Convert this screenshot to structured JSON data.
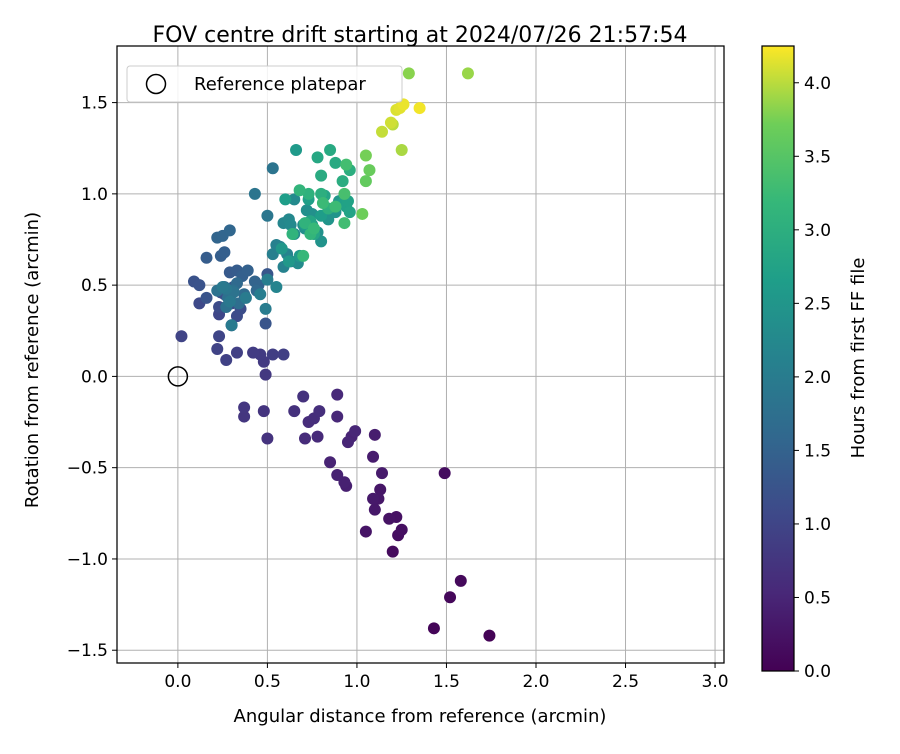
{
  "chart_data": {
    "type": "scatter",
    "title": "FOV centre drift starting at 2024/07/26 21:57:54",
    "xlabel": "Angular distance from reference (arcmin)",
    "ylabel": "Rotation from reference (arcmin)",
    "xlim": [
      -0.34,
      3.05
    ],
    "ylim": [
      -1.57,
      1.81
    ],
    "xticks": [
      0.0,
      0.5,
      1.0,
      1.5,
      2.0,
      2.5,
      3.0
    ],
    "xtick_labels": [
      "0.0",
      "0.5",
      "1.0",
      "1.5",
      "2.0",
      "2.5",
      "3.0"
    ],
    "yticks": [
      -1.5,
      -1.0,
      -0.5,
      0.0,
      0.5,
      1.0,
      1.5
    ],
    "ytick_labels": [
      "−1.5",
      "−1.0",
      "−0.5",
      "0.0",
      "0.5",
      "1.0",
      "1.5"
    ],
    "grid": true,
    "legend": {
      "position": "top-left",
      "entries": [
        "Reference platepar"
      ]
    },
    "reference": {
      "x": 0.0,
      "y": 0.0
    },
    "colorbar": {
      "label": "Hours from first FF file",
      "colormap": "viridis",
      "range": [
        0.0,
        4.25
      ],
      "ticks": [
        0.0,
        0.5,
        1.0,
        1.5,
        2.0,
        2.5,
        3.0,
        3.5,
        4.0
      ],
      "tick_labels": [
        "0.0",
        "0.5",
        "1.0",
        "1.5",
        "2.0",
        "2.5",
        "3.0",
        "3.5",
        "4.0"
      ]
    },
    "points": [
      [
        1.74,
        -1.42,
        0.03
      ],
      [
        1.43,
        -1.38,
        0.06
      ],
      [
        1.52,
        -1.21,
        0.09
      ],
      [
        1.58,
        -1.12,
        0.11
      ],
      [
        1.2,
        -0.96,
        0.14
      ],
      [
        1.23,
        -0.87,
        0.17
      ],
      [
        1.25,
        -0.84,
        0.19
      ],
      [
        1.22,
        -0.77,
        0.22
      ],
      [
        1.18,
        -0.78,
        0.24
      ],
      [
        1.05,
        -0.85,
        0.26
      ],
      [
        1.13,
        -0.62,
        0.28
      ],
      [
        1.12,
        -0.67,
        0.3
      ],
      [
        1.1,
        -0.73,
        0.31
      ],
      [
        1.09,
        -0.67,
        0.33
      ],
      [
        1.49,
        -0.53,
        0.16
      ],
      [
        1.14,
        -0.53,
        0.35
      ],
      [
        1.09,
        -0.44,
        0.37
      ],
      [
        1.1,
        -0.32,
        0.39
      ],
      [
        0.94,
        -0.6,
        0.41
      ],
      [
        0.93,
        -0.58,
        0.43
      ],
      [
        0.89,
        -0.54,
        0.45
      ],
      [
        0.85,
        -0.47,
        0.47
      ],
      [
        0.97,
        -0.33,
        0.48
      ],
      [
        0.95,
        -0.36,
        0.5
      ],
      [
        0.99,
        -0.3,
        0.52
      ],
      [
        0.89,
        -0.22,
        0.53
      ],
      [
        0.89,
        -0.1,
        0.55
      ],
      [
        0.78,
        -0.33,
        0.57
      ],
      [
        0.71,
        -0.34,
        0.59
      ],
      [
        0.73,
        -0.25,
        0.61
      ],
      [
        0.76,
        -0.23,
        0.63
      ],
      [
        0.79,
        -0.19,
        0.65
      ],
      [
        0.65,
        -0.19,
        0.67
      ],
      [
        0.7,
        -0.11,
        0.69
      ],
      [
        0.5,
        -0.34,
        0.71
      ],
      [
        0.48,
        -0.19,
        0.73
      ],
      [
        0.37,
        -0.22,
        0.75
      ],
      [
        0.37,
        -0.17,
        0.77
      ],
      [
        0.49,
        0.01,
        0.79
      ],
      [
        0.48,
        0.08,
        0.82
      ],
      [
        0.46,
        0.12,
        0.84
      ],
      [
        0.42,
        0.13,
        0.86
      ],
      [
        0.53,
        0.12,
        0.88
      ],
      [
        0.59,
        0.12,
        0.9
      ],
      [
        0.33,
        0.13,
        0.92
      ],
      [
        0.27,
        0.09,
        0.94
      ],
      [
        0.22,
        0.15,
        0.96
      ],
      [
        0.02,
        0.22,
        0.98
      ],
      [
        0.23,
        0.22,
        1.0
      ],
      [
        0.23,
        0.34,
        1.02
      ],
      [
        0.3,
        0.28,
        1.04
      ],
      [
        0.12,
        0.4,
        1.06
      ],
      [
        0.23,
        0.38,
        1.09
      ],
      [
        0.33,
        0.33,
        1.11
      ],
      [
        0.35,
        0.37,
        1.13
      ],
      [
        0.3,
        0.4,
        1.15
      ],
      [
        0.24,
        0.46,
        1.17
      ],
      [
        0.26,
        0.45,
        1.19
      ],
      [
        0.09,
        0.52,
        1.21
      ],
      [
        0.12,
        0.5,
        1.23
      ],
      [
        0.16,
        0.43,
        1.25
      ],
      [
        0.49,
        0.29,
        1.27
      ],
      [
        0.5,
        0.56,
        1.29
      ],
      [
        0.31,
        0.49,
        1.31
      ],
      [
        0.27,
        0.47,
        1.34
      ],
      [
        0.29,
        0.57,
        1.36
      ],
      [
        0.33,
        0.58,
        1.38
      ],
      [
        0.16,
        0.65,
        1.4
      ],
      [
        0.24,
        0.66,
        1.42
      ],
      [
        0.26,
        0.68,
        1.44
      ],
      [
        0.36,
        0.55,
        1.46
      ],
      [
        0.39,
        0.58,
        1.48
      ],
      [
        0.45,
        0.5,
        1.5
      ],
      [
        0.43,
        0.52,
        1.52
      ],
      [
        0.22,
        0.76,
        1.54
      ],
      [
        0.25,
        0.77,
        1.56
      ],
      [
        0.29,
        0.8,
        1.58
      ],
      [
        0.44,
        0.47,
        1.6
      ],
      [
        0.33,
        0.51,
        1.63
      ],
      [
        0.37,
        0.45,
        1.65
      ],
      [
        0.26,
        0.49,
        1.67
      ],
      [
        0.29,
        0.43,
        1.69
      ],
      [
        0.34,
        0.4,
        1.71
      ],
      [
        0.31,
        0.47,
        1.73
      ],
      [
        0.28,
        0.43,
        1.75
      ],
      [
        0.27,
        0.38,
        1.77
      ],
      [
        0.22,
        0.47,
        1.79
      ],
      [
        0.31,
        0.46,
        1.81
      ],
      [
        0.53,
        1.14,
        1.83
      ],
      [
        0.43,
        1.0,
        1.85
      ],
      [
        0.5,
        0.88,
        1.88
      ],
      [
        0.27,
        0.48,
        1.9
      ],
      [
        0.29,
        0.41,
        1.92
      ],
      [
        0.25,
        0.49,
        1.94
      ],
      [
        0.3,
        0.28,
        1.96
      ],
      [
        0.38,
        0.43,
        1.98
      ],
      [
        0.49,
        0.37,
        2.0
      ],
      [
        0.46,
        0.45,
        2.02
      ],
      [
        0.5,
        0.53,
        2.04
      ],
      [
        0.53,
        0.67,
        2.06
      ],
      [
        0.55,
        0.72,
        2.08
      ],
      [
        0.57,
        0.71,
        2.1
      ],
      [
        0.59,
        0.6,
        2.12
      ],
      [
        0.61,
        0.67,
        2.14
      ],
      [
        0.55,
        0.49,
        2.17
      ],
      [
        0.63,
        0.63,
        2.19
      ],
      [
        0.59,
        0.84,
        2.21
      ],
      [
        0.62,
        0.86,
        2.23
      ],
      [
        0.63,
        0.83,
        2.25
      ],
      [
        0.65,
        0.97,
        2.27
      ],
      [
        0.67,
        0.62,
        2.29
      ],
      [
        0.65,
        0.78,
        2.31
      ],
      [
        0.7,
        0.83,
        2.33
      ],
      [
        0.71,
        0.81,
        2.35
      ],
      [
        0.72,
        0.91,
        2.37
      ],
      [
        0.75,
        0.89,
        2.39
      ],
      [
        0.78,
        0.79,
        2.41
      ],
      [
        0.8,
        0.74,
        2.44
      ],
      [
        0.84,
        0.86,
        2.46
      ],
      [
        0.88,
        0.9,
        2.48
      ],
      [
        0.9,
        0.96,
        2.5
      ],
      [
        0.58,
        0.7,
        2.52
      ],
      [
        0.62,
        0.63,
        2.54
      ],
      [
        0.68,
        0.66,
        2.56
      ],
      [
        0.66,
        1.24,
        2.58
      ],
      [
        0.71,
        0.83,
        2.6
      ],
      [
        0.75,
        0.83,
        2.62
      ],
      [
        0.8,
        0.88,
        2.64
      ],
      [
        0.6,
        0.97,
        2.66
      ],
      [
        0.73,
        0.97,
        2.68
      ],
      [
        0.92,
        0.95,
        2.7
      ],
      [
        0.94,
        0.93,
        2.72
      ],
      [
        0.95,
        0.96,
        2.74
      ],
      [
        0.96,
        0.9,
        2.76
      ],
      [
        0.82,
        0.99,
        2.79
      ],
      [
        0.74,
        0.85,
        2.81
      ],
      [
        0.76,
        0.78,
        2.83
      ],
      [
        0.78,
        1.2,
        2.85
      ],
      [
        0.85,
        1.24,
        2.88
      ],
      [
        0.88,
        1.17,
        2.9
      ],
      [
        0.8,
        1.1,
        2.92
      ],
      [
        0.92,
        1.07,
        2.95
      ],
      [
        0.96,
        1.13,
        2.98
      ],
      [
        0.8,
        1.0,
        3.0
      ],
      [
        0.84,
        0.92,
        3.02
      ],
      [
        0.73,
        1.0,
        3.05
      ],
      [
        0.71,
        0.84,
        3.08
      ],
      [
        0.64,
        0.78,
        3.1
      ],
      [
        0.68,
        1.02,
        3.13
      ],
      [
        0.74,
        0.78,
        3.15
      ],
      [
        0.7,
        0.66,
        3.18
      ],
      [
        0.76,
        0.81,
        3.21
      ],
      [
        0.81,
        0.95,
        3.24
      ],
      [
        0.88,
        0.93,
        3.26
      ],
      [
        0.93,
        0.84,
        3.3
      ],
      [
        0.94,
        1.16,
        3.33
      ],
      [
        0.93,
        1.0,
        3.36
      ],
      [
        1.05,
        1.07,
        3.62
      ],
      [
        1.07,
        1.13,
        3.66
      ],
      [
        1.03,
        0.89,
        3.7
      ],
      [
        1.05,
        1.21,
        3.74
      ],
      [
        1.29,
        1.66,
        3.82
      ],
      [
        1.62,
        1.66,
        3.88
      ],
      [
        1.25,
        1.24,
        3.94
      ],
      [
        1.2,
        1.38,
        4.0
      ],
      [
        1.14,
        1.34,
        4.04
      ],
      [
        1.19,
        1.39,
        4.08
      ],
      [
        1.22,
        1.46,
        4.12
      ],
      [
        1.24,
        1.47,
        4.15
      ],
      [
        1.26,
        1.49,
        4.18
      ],
      [
        1.35,
        1.47,
        4.21
      ]
    ]
  }
}
